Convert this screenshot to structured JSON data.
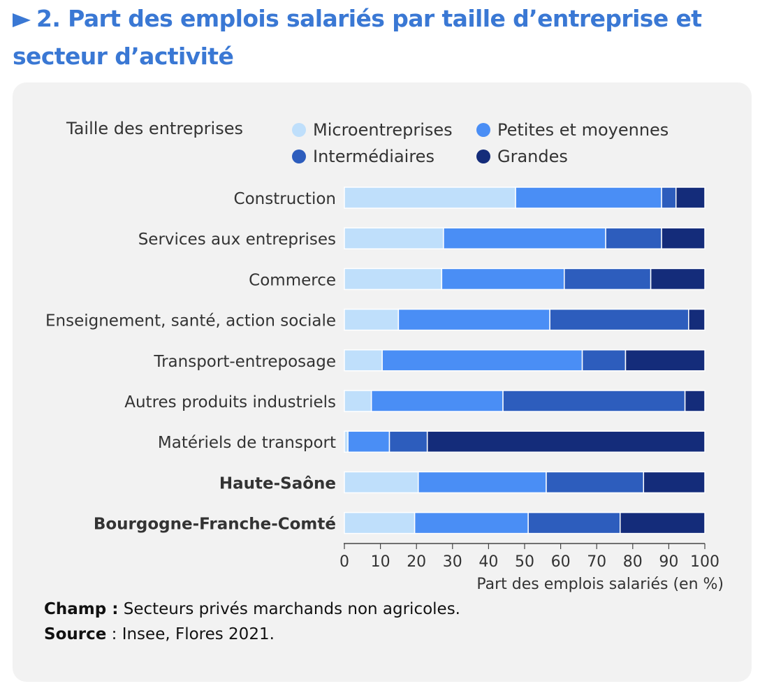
{
  "title": "2. Part des emplois salariés par taille d’entreprise et secteur d’activité",
  "notes": {
    "champ_label": "Champ :",
    "champ_text": " Secteurs privés marchands non agricoles.",
    "source_label": "Source",
    "source_text": " : Insee, Flores 2021."
  },
  "chart_data": {
    "type": "bar",
    "orientation": "horizontal",
    "stacked": true,
    "legend_title": "Taille des entreprises",
    "categories": [
      "Construction",
      "Services aux entreprises",
      "Commerce",
      "Enseignement, santé, action sociale",
      "Transport-entreposage",
      "Autres produits industriels",
      "Matériels de transport",
      "Haute-Saône",
      "Bourgogne-Franche-Comté"
    ],
    "bold_categories": [
      "Haute-Saône",
      "Bourgogne-Franche-Comté"
    ],
    "series": [
      {
        "name": "Microentreprises",
        "color": "#bfdffb",
        "values": [
          47.5,
          27.5,
          27,
          15,
          10.5,
          7.5,
          1,
          20.5,
          19.5
        ]
      },
      {
        "name": "Petites et moyennes",
        "color": "#4a8ef5",
        "values": [
          40.5,
          45,
          34,
          42,
          55.5,
          36.5,
          11.5,
          35.5,
          31.5
        ]
      },
      {
        "name": "Intermédiaires",
        "color": "#2d5dbd",
        "values": [
          4,
          15.5,
          24,
          38.5,
          12,
          50.5,
          10.5,
          27,
          25.5
        ]
      },
      {
        "name": "Grandes",
        "color": "#142c7a",
        "values": [
          8,
          12,
          15,
          4.5,
          22,
          5.5,
          77,
          17,
          23.5
        ]
      }
    ],
    "xlabel": "Part des emplois salariés (en %)",
    "xlim": [
      0,
      100
    ],
    "xticks": [
      0,
      10,
      20,
      30,
      40,
      50,
      60,
      70,
      80,
      90,
      100
    ],
    "legend_position": "top"
  }
}
